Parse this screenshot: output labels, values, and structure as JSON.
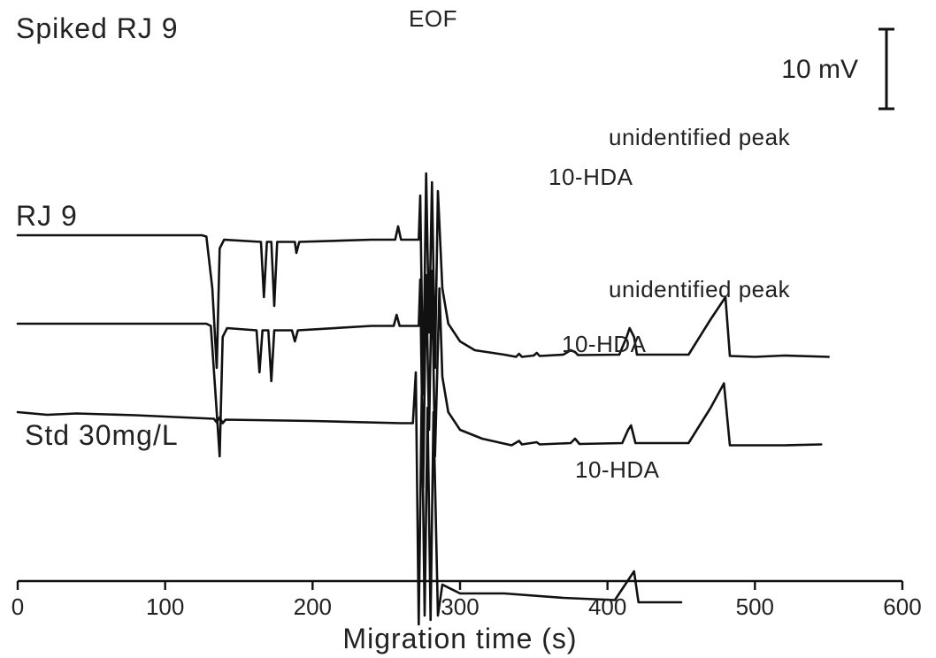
{
  "chart_data": {
    "type": "line",
    "title": "",
    "xlabel": "Migration time (s)",
    "ylabel": "",
    "xlim": [
      0,
      600
    ],
    "xticks": [
      0,
      100,
      200,
      300,
      400,
      500,
      600
    ],
    "grid": false,
    "legend": "none",
    "scale_bar": {
      "label": "10 mV",
      "value_mV": 10
    },
    "series": [
      {
        "name": "Spiked RJ 9",
        "offset_mV": 40,
        "points": [
          [
            0,
            0
          ],
          [
            125,
            0
          ],
          [
            128,
            -0.3
          ],
          [
            132,
            -12
          ],
          [
            135,
            -30
          ],
          [
            137,
            -3
          ],
          [
            140,
            -1
          ],
          [
            165,
            -1.5
          ],
          [
            167,
            -14
          ],
          [
            169,
            -1.5
          ],
          [
            172,
            -1.5
          ],
          [
            174,
            -16
          ],
          [
            176,
            -1.5
          ],
          [
            188,
            -1.5
          ],
          [
            189,
            -4
          ],
          [
            191,
            -1.5
          ],
          [
            240,
            -1
          ],
          [
            256,
            -1
          ],
          [
            258,
            2
          ],
          [
            260,
            -1
          ],
          [
            272,
            -1
          ],
          [
            273,
            9
          ],
          [
            275,
            -36
          ],
          [
            277,
            14
          ],
          [
            279,
            -22
          ],
          [
            281,
            12
          ],
          [
            283,
            -30
          ],
          [
            285,
            10
          ],
          [
            288,
            -12
          ],
          [
            292,
            -20
          ],
          [
            300,
            -24
          ],
          [
            310,
            -26
          ],
          [
            330,
            -27
          ],
          [
            338,
            -27.5
          ],
          [
            340,
            -26.8
          ],
          [
            342,
            -27.5
          ],
          [
            350,
            -27.2
          ],
          [
            352,
            -26.6
          ],
          [
            354,
            -27.3
          ],
          [
            370,
            -27
          ],
          [
            375,
            -26
          ],
          [
            378,
            -26.4
          ],
          [
            380,
            -27.1
          ],
          [
            408,
            -27
          ],
          [
            413,
            -23
          ],
          [
            415,
            -21
          ],
          [
            418,
            -23
          ],
          [
            420,
            -27
          ],
          [
            455,
            -27
          ],
          [
            470,
            -19
          ],
          [
            480,
            -14
          ],
          [
            483,
            -27.3
          ],
          [
            500,
            -27.5
          ],
          [
            520,
            -27.2
          ],
          [
            550,
            -27.5
          ]
        ]
      },
      {
        "name": "RJ 9",
        "offset_mV": 20,
        "points": [
          [
            0,
            0
          ],
          [
            128,
            0
          ],
          [
            131,
            -0.5
          ],
          [
            134,
            -15
          ],
          [
            137,
            -30
          ],
          [
            139,
            -3
          ],
          [
            142,
            -1
          ],
          [
            162,
            -1.5
          ],
          [
            164,
            -11
          ],
          [
            166,
            -1.5
          ],
          [
            170,
            -1.5
          ],
          [
            172,
            -13
          ],
          [
            174,
            -1.5
          ],
          [
            186,
            -1.5
          ],
          [
            188,
            -4
          ],
          [
            190,
            -1.5
          ],
          [
            240,
            -0.5
          ],
          [
            255,
            -0.5
          ],
          [
            257,
            2
          ],
          [
            259,
            -0.5
          ],
          [
            272,
            -0.5
          ],
          [
            273,
            10
          ],
          [
            275,
            -37
          ],
          [
            277,
            11
          ],
          [
            279,
            -24
          ],
          [
            281,
            12
          ],
          [
            283,
            -30
          ],
          [
            286,
            8
          ],
          [
            288,
            -12
          ],
          [
            292,
            -20
          ],
          [
            300,
            -24
          ],
          [
            315,
            -26
          ],
          [
            335,
            -27.5
          ],
          [
            340,
            -26.5
          ],
          [
            342,
            -27.3
          ],
          [
            352,
            -26.8
          ],
          [
            354,
            -27.3
          ],
          [
            375,
            -27
          ],
          [
            378,
            -26
          ],
          [
            381,
            -27.2
          ],
          [
            410,
            -27
          ],
          [
            414,
            -24
          ],
          [
            416,
            -23
          ],
          [
            419,
            -27
          ],
          [
            455,
            -27
          ],
          [
            470,
            -19
          ],
          [
            479,
            -13.5
          ],
          [
            483,
            -27.5
          ],
          [
            520,
            -27.5
          ],
          [
            545,
            -27.3
          ]
        ]
      },
      {
        "name": "Std 30mg/L",
        "offset_mV": 0,
        "points": [
          [
            0,
            0
          ],
          [
            20,
            -0.6
          ],
          [
            40,
            -0.3
          ],
          [
            80,
            -0.7
          ],
          [
            133,
            -1.5
          ],
          [
            135,
            -2.3
          ],
          [
            137,
            -1.2
          ],
          [
            139,
            -2.5
          ],
          [
            141,
            -1.7
          ],
          [
            200,
            -2
          ],
          [
            260,
            -2.5
          ],
          [
            268,
            -2.5
          ],
          [
            270,
            9
          ],
          [
            272,
            -48
          ],
          [
            274,
            4
          ],
          [
            276,
            -46
          ],
          [
            278,
            1
          ],
          [
            280,
            -47
          ],
          [
            282,
            0
          ],
          [
            285,
            -46
          ],
          [
            288,
            -39
          ],
          [
            300,
            -41
          ],
          [
            330,
            -41
          ],
          [
            370,
            -42
          ],
          [
            405,
            -42.5
          ],
          [
            414,
            -38
          ],
          [
            418,
            -36
          ],
          [
            421,
            -43
          ],
          [
            450,
            -43
          ]
        ]
      }
    ],
    "annotations": [
      {
        "text": "EOF"
      },
      {
        "text": "unidentified peak"
      },
      {
        "text": "10-HDA"
      },
      {
        "text": "unidentified peak"
      },
      {
        "text": "10-HDA"
      },
      {
        "text": "10-HDA"
      }
    ]
  }
}
